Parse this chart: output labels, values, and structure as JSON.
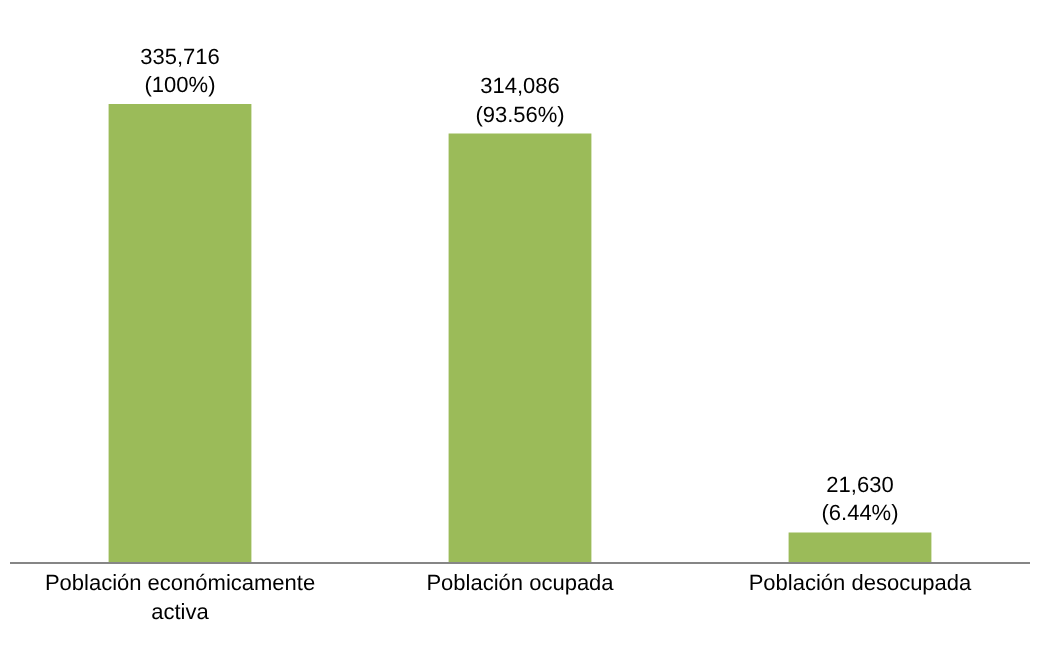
{
  "chart_data": {
    "type": "bar",
    "categories": [
      "Población económicamente\nactiva",
      "Población ocupada",
      "Población desocupada"
    ],
    "values": [
      335716,
      314086,
      21630
    ],
    "value_labels": [
      "335,716\n(100%)",
      "314,086\n(93.56%)",
      "21,630\n(6.44%)"
    ],
    "color": "#9bbb59",
    "grid": false,
    "legend": false
  }
}
